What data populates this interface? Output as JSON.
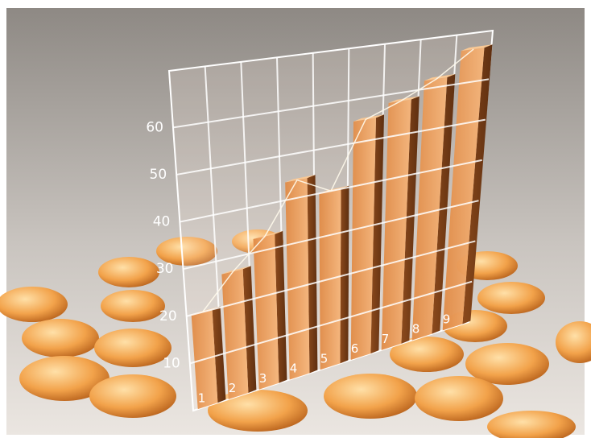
{
  "chart_data": {
    "type": "bar",
    "categories": [
      "1",
      "2",
      "3",
      "4",
      "5",
      "6",
      "7",
      "8",
      "9"
    ],
    "values": [
      20,
      27,
      33,
      44,
      40,
      55,
      58,
      62,
      68
    ],
    "ylim": [
      0,
      72
    ],
    "yticks": [
      10,
      20,
      30,
      40,
      50,
      60
    ],
    "grid": true
  }
}
